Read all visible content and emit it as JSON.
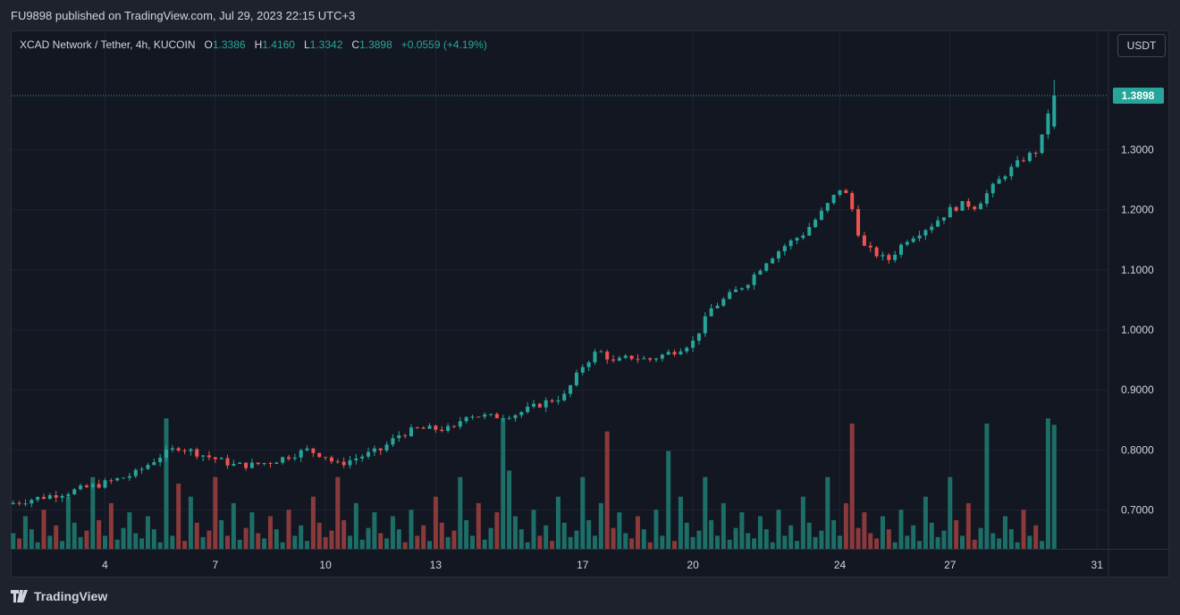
{
  "header": {
    "published_text": "FU9898 published on TradingView.com, Jul 29, 2023 22:15 UTC+3"
  },
  "legend": {
    "symbol": "XCAD Network / Tether, 4h, KUCOIN",
    "o_label": "O",
    "o_value": "1.3386",
    "h_label": "H",
    "h_value": "1.4160",
    "l_label": "L",
    "l_value": "1.3342",
    "c_label": "C",
    "c_value": "1.3898",
    "change": "+0.0559 (+4.19%)"
  },
  "currency_button": "USDT",
  "footer": {
    "brand": "TradingView"
  },
  "colors": {
    "up": "#26a69a",
    "down": "#ef5350",
    "vol_up": "#1e6e68",
    "vol_down": "#8b3a3c",
    "background": "#131722",
    "grid": "#1f2330"
  },
  "chart_data": {
    "type": "candlestick",
    "symbol": "XCAD/USDT",
    "interval": "4h",
    "last_price": "1.3898",
    "y_ticks": [
      "1.3000",
      "1.2000",
      "1.1000",
      "1.0000",
      "0.9000",
      "0.8000",
      "0.7000"
    ],
    "ylim": [
      0.64,
      1.45
    ],
    "x_ticks": [
      {
        "label": "4",
        "day": 4
      },
      {
        "label": "7",
        "day": 7
      },
      {
        "label": "10",
        "day": 10
      },
      {
        "label": "13",
        "day": 13
      },
      {
        "label": "17",
        "day": 17
      },
      {
        "label": "20",
        "day": 20
      },
      {
        "label": "24",
        "day": 24
      },
      {
        "label": "27",
        "day": 27
      },
      {
        "label": "31",
        "day": 31
      }
    ],
    "close_anchors": [
      [
        1.5,
        0.712
      ],
      [
        3.0,
        0.73
      ],
      [
        4.0,
        0.745
      ],
      [
        4.8,
        0.76
      ],
      [
        5.5,
        0.79
      ],
      [
        6.0,
        0.805
      ],
      [
        6.5,
        0.795
      ],
      [
        7.0,
        0.785
      ],
      [
        7.5,
        0.775
      ],
      [
        8.0,
        0.775
      ],
      [
        8.5,
        0.78
      ],
      [
        9.0,
        0.79
      ],
      [
        9.5,
        0.8
      ],
      [
        10.0,
        0.79
      ],
      [
        10.3,
        0.775
      ],
      [
        11.0,
        0.79
      ],
      [
        11.5,
        0.8
      ],
      [
        12.0,
        0.825
      ],
      [
        12.5,
        0.835
      ],
      [
        13.5,
        0.835
      ],
      [
        13.8,
        0.86
      ],
      [
        14.5,
        0.855
      ],
      [
        15.2,
        0.86
      ],
      [
        16.0,
        0.88
      ],
      [
        16.5,
        0.89
      ],
      [
        17.0,
        0.94
      ],
      [
        17.4,
        0.965
      ],
      [
        17.6,
        0.96
      ],
      [
        17.8,
        0.945
      ],
      [
        18.3,
        0.955
      ],
      [
        18.8,
        0.95
      ],
      [
        19.5,
        0.965
      ],
      [
        20.0,
        0.98
      ],
      [
        20.5,
        1.035
      ],
      [
        21.5,
        1.08
      ],
      [
        22.0,
        1.115
      ],
      [
        22.5,
        1.14
      ],
      [
        23.0,
        1.16
      ],
      [
        23.5,
        1.195
      ],
      [
        24.0,
        1.235
      ],
      [
        24.25,
        1.22
      ],
      [
        24.6,
        1.14
      ],
      [
        25.3,
        1.115
      ],
      [
        25.8,
        1.15
      ],
      [
        26.5,
        1.175
      ],
      [
        27.0,
        1.2
      ],
      [
        27.4,
        1.21
      ],
      [
        27.7,
        1.205
      ],
      [
        27.9,
        1.22
      ],
      [
        28.5,
        1.26
      ],
      [
        29.0,
        1.285
      ],
      [
        29.4,
        1.3
      ],
      [
        29.6,
        1.34
      ],
      [
        29.75,
        1.39
      ]
    ],
    "volume_pattern": [
      0.12,
      0.08,
      0.25,
      0.15,
      0.05,
      0.3,
      0.1,
      0.18,
      0.06,
      0.4,
      0.2,
      0.09,
      0.14,
      0.55,
      0.22,
      0.1,
      0.35,
      0.07,
      0.16,
      0.28
    ],
    "volume_spikes": [
      {
        "day": 5.6,
        "value": 1.0
      },
      {
        "day": 6.0,
        "value": 0.5
      },
      {
        "day": 14.8,
        "value": 1.0
      },
      {
        "day": 15.0,
        "value": 0.6
      },
      {
        "day": 17.7,
        "value": 0.9
      },
      {
        "day": 19.3,
        "value": 0.75
      },
      {
        "day": 24.3,
        "value": 0.96
      },
      {
        "day": 28.0,
        "value": 0.96
      },
      {
        "day": 29.6,
        "value": 1.0
      },
      {
        "day": 29.75,
        "value": 0.95
      }
    ]
  }
}
